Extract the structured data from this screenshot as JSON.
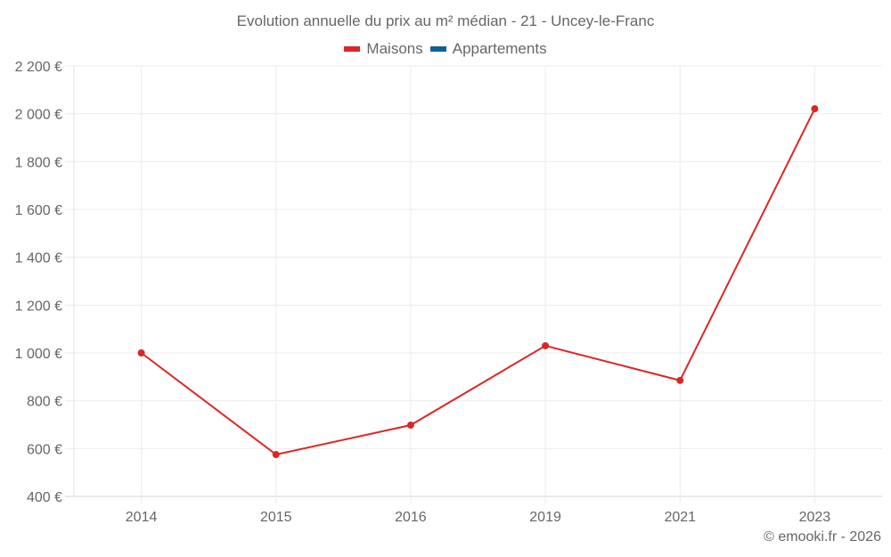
{
  "chart": {
    "title": "Evolution annuelle du prix au m² médian - 21 - Uncey-le-Franc",
    "legend": [
      {
        "label": "Maisons",
        "color": "#dc2626"
      },
      {
        "label": "Appartements",
        "color": "#0e6198"
      }
    ],
    "credit": "© emooki.fr - 2026"
  },
  "chart_data": {
    "type": "line",
    "title": "Evolution annuelle du prix au m² médian - 21 - Uncey-le-Franc",
    "xlabel": "",
    "ylabel": "",
    "categories": [
      "2014",
      "2015",
      "2016",
      "2019",
      "2021",
      "2023"
    ],
    "series": [
      {
        "name": "Maisons",
        "color": "#dc2626",
        "values": [
          1000,
          575,
          698,
          1030,
          885,
          2021
        ]
      },
      {
        "name": "Appartements",
        "color": "#0e6198",
        "values": [
          null,
          null,
          null,
          null,
          null,
          null
        ]
      }
    ],
    "ylim": [
      400,
      2200
    ],
    "yticks": [
      400,
      600,
      800,
      1000,
      1200,
      1400,
      1600,
      1800,
      2000,
      2200
    ],
    "ytick_labels": [
      "400 €",
      "600 €",
      "800 €",
      "1 000 €",
      "1 200 €",
      "1 400 €",
      "1 600 €",
      "1 800 €",
      "2 000 €",
      "2 200 €"
    ],
    "grid": true,
    "legend_position": "top"
  }
}
